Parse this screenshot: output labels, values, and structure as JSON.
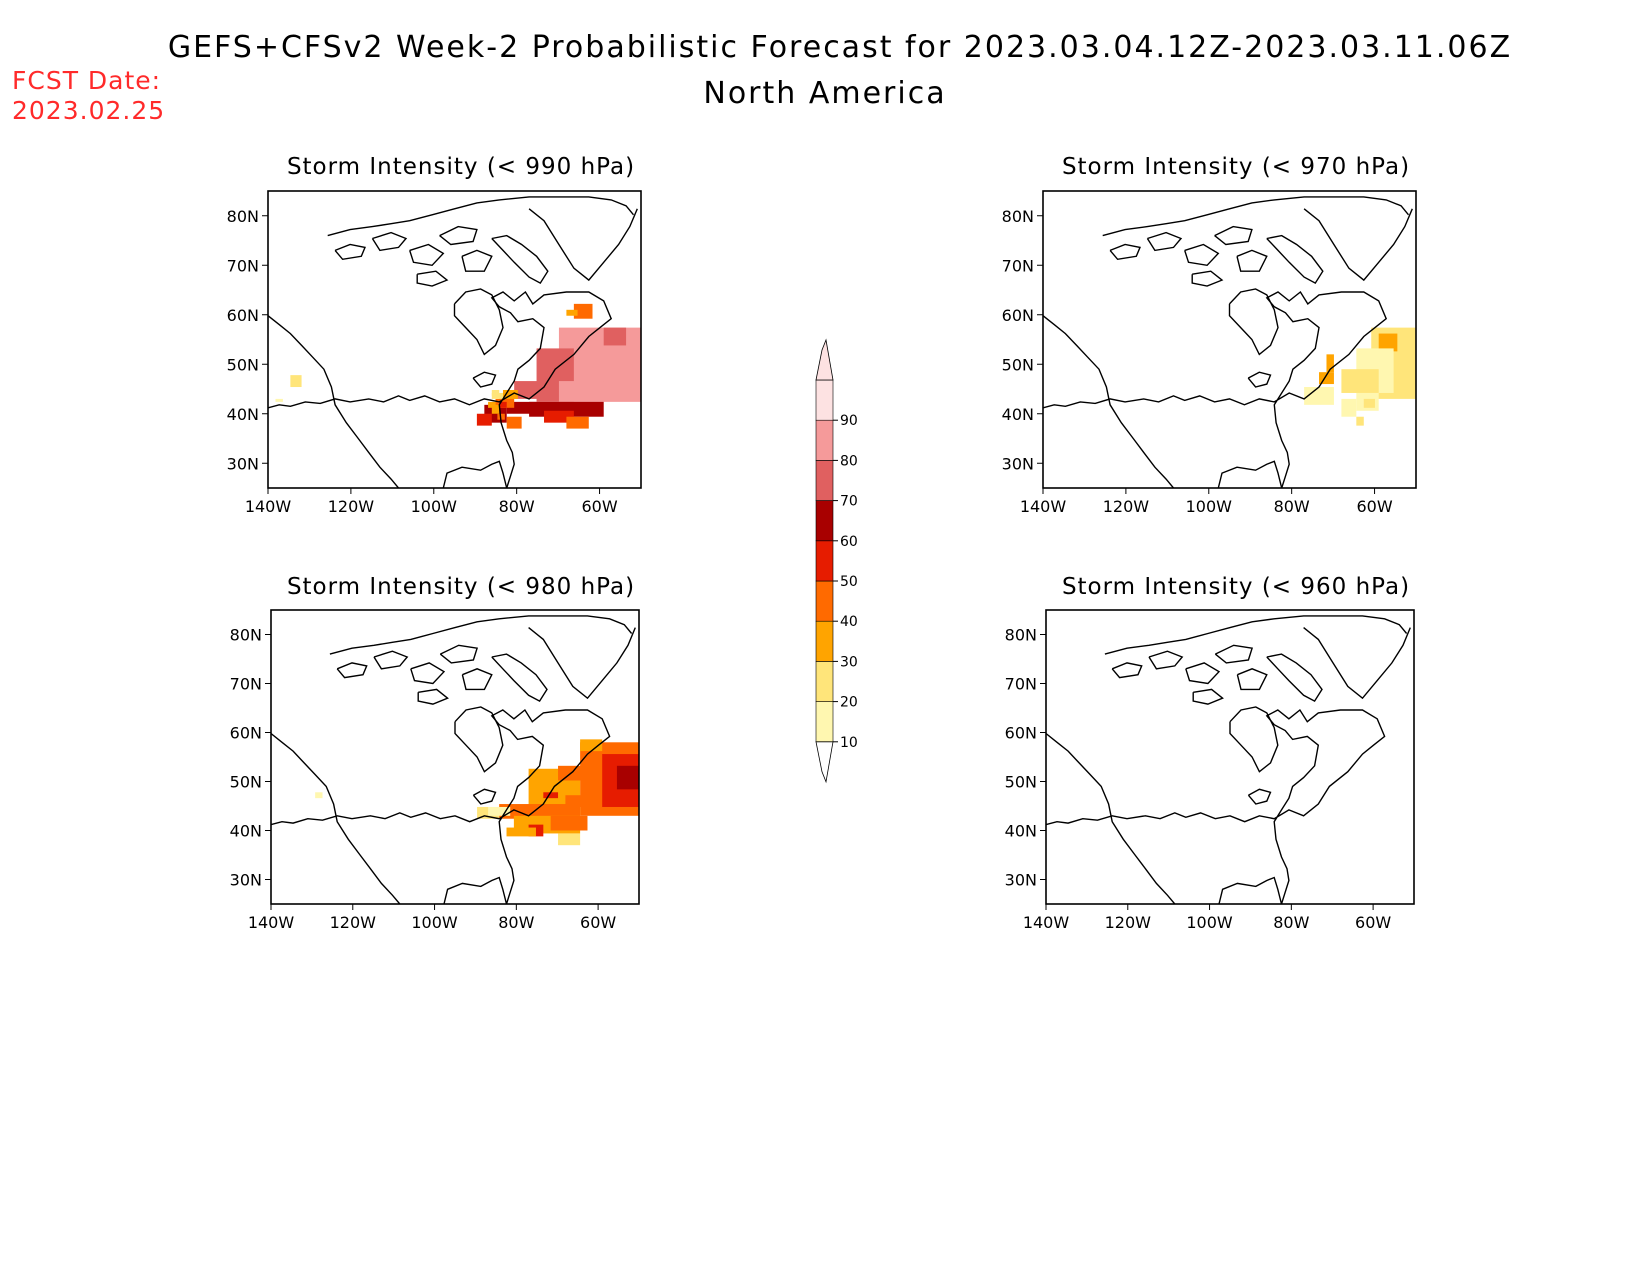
{
  "header": {
    "title": "GEFS+CFSv2 Week-2 Probabilistic Forecast for 2023.03.04.12Z-2023.03.11.06Z",
    "region": "North America",
    "fcst_label": "FCST Date:",
    "fcst_date": "2023.02.25"
  },
  "panels": [
    {
      "title": "Storm Intensity (< 990 hPa)",
      "threshold": "990 hPa"
    },
    {
      "title": "Storm Intensity (< 970 hPa)",
      "threshold": "970 hPa"
    },
    {
      "title": "Storm Intensity (< 980 hPa)",
      "threshold": "980 hPa"
    },
    {
      "title": "Storm Intensity (< 960 hPa)",
      "threshold": "960 hPa"
    }
  ],
  "axes": {
    "lat_ticks": [
      "30N",
      "40N",
      "50N",
      "60N",
      "70N",
      "80N"
    ],
    "lon_ticks": [
      "140W",
      "120W",
      "100W",
      "80W",
      "60W"
    ],
    "lat_range": [
      25,
      85
    ],
    "lon_range": [
      -140,
      -50
    ]
  },
  "colorbar": {
    "labels": [
      "10",
      "20",
      "30",
      "40",
      "50",
      "60",
      "70",
      "80",
      "90"
    ],
    "colors": [
      "#fff7b0",
      "#ffe57a",
      "#ffa400",
      "#ff6a00",
      "#e61c00",
      "#a80000",
      "#e06060",
      "#f59a9a",
      "#fde2e2"
    ]
  }
}
